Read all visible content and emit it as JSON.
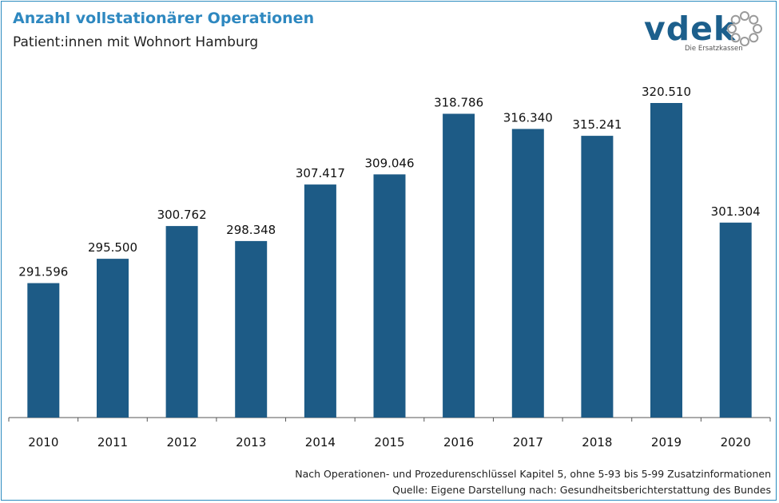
{
  "header": {
    "title": "Anzahl vollstationärer Operationen",
    "subtitle": "Patient:innen mit Wohnort Hamburg"
  },
  "logo": {
    "wordmark": "vdek",
    "tagline": "Die Ersatzkassen",
    "color": "#1c5f8c",
    "ring_color": "#9a9a9a",
    "icon": "dotted-ring-icon"
  },
  "chart_data": {
    "type": "bar",
    "title": "Anzahl vollstationärer Operationen",
    "subtitle": "Patient:innen mit Wohnort Hamburg",
    "categories": [
      "2010",
      "2011",
      "2012",
      "2013",
      "2014",
      "2015",
      "2016",
      "2017",
      "2018",
      "2019",
      "2020"
    ],
    "values": [
      291596,
      295500,
      300762,
      298348,
      307417,
      309046,
      318786,
      316340,
      315241,
      320510,
      301304
    ],
    "data_labels": [
      "291.596",
      "295.500",
      "300.762",
      "298.348",
      "307.417",
      "309.046",
      "318.786",
      "316.340",
      "315.241",
      "320.510",
      "301.304"
    ],
    "bar_color": "#1d5b86",
    "ylim": [
      270000,
      330000
    ],
    "grid": false,
    "legend": "none",
    "xlabel": "",
    "ylabel": ""
  },
  "footnotes": {
    "line1": "Nach Operationen- und Prozedurenschlüssel Kapitel 5, ohne 5-93 bis 5-99 Zusatzinformationen",
    "line2": "Quelle: Eigene Darstellung nach: Gesundheitsberichterstattung  des Bundes"
  }
}
